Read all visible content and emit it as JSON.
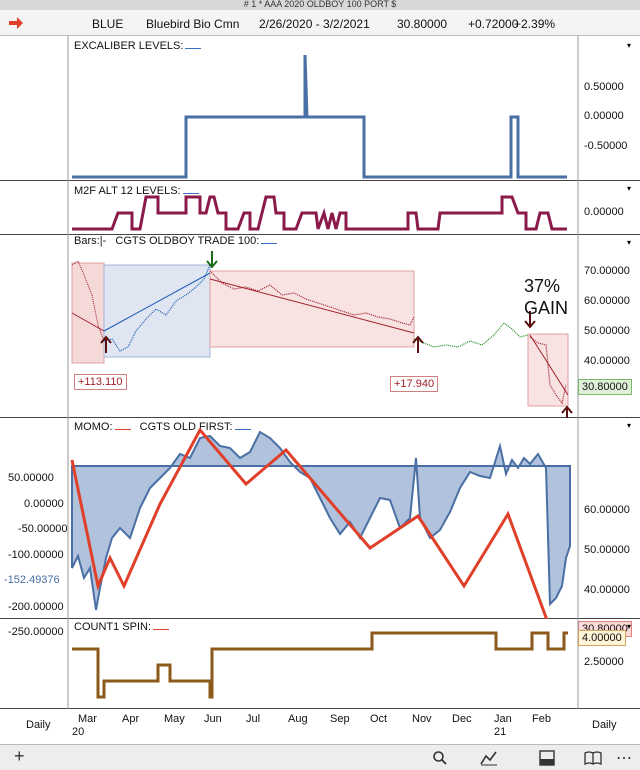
{
  "window": {
    "title": "# 1 * AAA 2020 OLDBOY 100 PORT $"
  },
  "header": {
    "symbol": "BLUE",
    "name": "Bluebird Bio Cmn",
    "date_range": "2/26/2020 - 3/2/2021",
    "price": "30.80000",
    "change": "+0.72000",
    "change_pct": "+2.39%"
  },
  "panes": {
    "excaliber": {
      "label": "EXCALIBER LEVELS:",
      "y_ticks": [
        "0.50000",
        "0.00000",
        "-0.50000"
      ]
    },
    "m2f": {
      "label": "M2F ALT 12 LEVELS:",
      "y_ticks": [
        "0.00000"
      ]
    },
    "price": {
      "bars_label": "Bars:",
      "bars_value": "|-",
      "title": "CGTS OLDBOY TRADE 100:",
      "y_ticks": [
        "70.00000",
        "60.00000",
        "50.00000",
        "40.00000"
      ],
      "current": "30.80000",
      "trade1": "+113.110",
      "trade2": "+17.940",
      "gain_pct": "37%",
      "gain_word": "GAIN"
    },
    "momo": {
      "label1": "MOMO:",
      "label2": "CGTS OLD FIRST:",
      "left_ticks": [
        "50.00000",
        "0.00000",
        "-50.00000",
        "-100.00000",
        "-152.49376",
        "-200.00000",
        "-250.00000"
      ],
      "right_ticks": [
        "60.00000",
        "50.00000",
        "40.00000"
      ],
      "current": "30.80000"
    },
    "count": {
      "label": "COUNT1 SPIN:",
      "y_ticks": [
        "4.00000",
        "2.50000"
      ]
    }
  },
  "x_axis": {
    "months": [
      "Mar",
      "Apr",
      "May",
      "Jun",
      "Jul",
      "Aug",
      "Sep",
      "Oct",
      "Nov",
      "Dec",
      "Jan",
      "Feb"
    ],
    "year_start": "20",
    "year_end": "21",
    "period_left": "Daily",
    "period_right": "Daily"
  },
  "toolbar": {
    "add_icon": "plus-icon",
    "icons": [
      "search-icon",
      "draw-line-icon",
      "layout-icon",
      "book-icon",
      "more-icon"
    ]
  },
  "colors": {
    "excaliber_line": "#4a6fa5",
    "m2f_line": "#8b1a4a",
    "momo_fill": "#4a6fa5",
    "old_first_line": "#e0402a",
    "count_line": "#8b5a1a",
    "price_up": "#1e5bb5",
    "price_down": "#a0202a",
    "price_green": "#1a8a1a"
  }
}
